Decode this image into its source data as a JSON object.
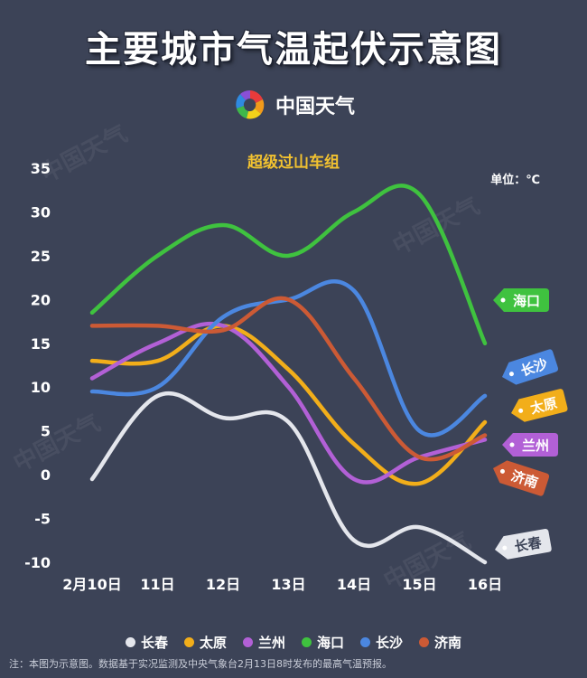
{
  "title": "主要城市气温起伏示意图",
  "brand": "中国天气",
  "unit": "单位：℃",
  "footnote": "注：本图为示意图。数据基于实况监测及中央气象台2月13日8时发布的最高气温预报。",
  "watermark": "中国天气",
  "colors": {
    "background": "#3c4357",
    "title": "#ffffff",
    "subtitle": "#f2c230"
  },
  "chart_data": {
    "type": "line",
    "title": "超级过山车组",
    "unit": "℃",
    "categories": [
      "2月10日",
      "11日",
      "12日",
      "13日",
      "14日",
      "15日",
      "16日"
    ],
    "ylim": [
      -10,
      35
    ],
    "yticks": [
      -10,
      -5,
      0,
      5,
      10,
      15,
      20,
      25,
      30,
      35
    ],
    "grid": false,
    "legend_position": "bottom",
    "series": [
      {
        "name": "长春",
        "color": "#e4e6ec",
        "values": [
          -0.5,
          9,
          6.5,
          6,
          -7.5,
          -6,
          -10
        ]
      },
      {
        "name": "太原",
        "color": "#f2ae1a",
        "values": [
          13,
          13,
          17,
          12,
          3.5,
          -1,
          6
        ]
      },
      {
        "name": "兰州",
        "color": "#b260d6",
        "values": [
          11,
          15,
          17,
          10,
          -0.5,
          2,
          4
        ]
      },
      {
        "name": "海口",
        "color": "#3fc23f",
        "values": [
          18.5,
          25,
          28.5,
          25,
          30,
          32,
          15
        ]
      },
      {
        "name": "长沙",
        "color": "#4b87e0",
        "values": [
          9.5,
          10,
          18,
          20,
          21,
          5,
          9
        ]
      },
      {
        "name": "济南",
        "color": "#cc5a35",
        "values": [
          17,
          17,
          16.5,
          20,
          11,
          2,
          4.5
        ]
      }
    ],
    "tags": [
      {
        "label": "海口",
        "color": "#3fc23f"
      },
      {
        "label": "长沙",
        "color": "#4b87e0"
      },
      {
        "label": "太原",
        "color": "#f2ae1a"
      },
      {
        "label": "兰州",
        "color": "#b260d6"
      },
      {
        "label": "济南",
        "color": "#cc5a35"
      },
      {
        "label": "长春",
        "color": "#e4e6ec"
      }
    ]
  }
}
